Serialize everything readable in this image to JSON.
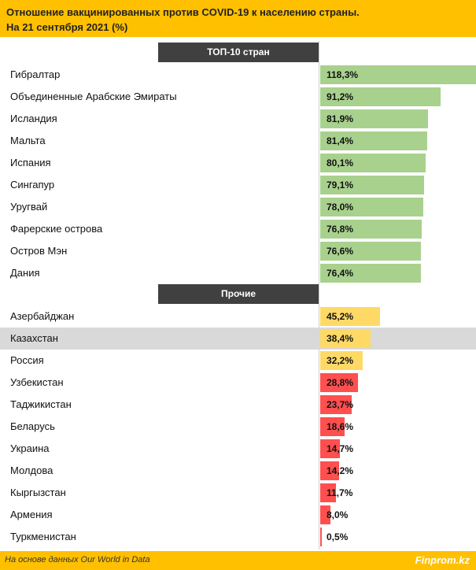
{
  "header": {
    "title_line1": "Отношение вакцинированных против COVID-19 к населению страны.",
    "title_line2": "На 21 сентября 2021 (%)"
  },
  "footer": {
    "source": "На основе данных Our World in Data",
    "brand": "Finprom.kz"
  },
  "colors": {
    "header_bg": "#ffc000",
    "section_bg": "#404040",
    "top10_bar": "#a9d18e",
    "mid_bar": "#ffd966",
    "low_bar": "#ff4f4f",
    "highlight_row": "#d9d9d9"
  },
  "chart_data": {
    "type": "bar",
    "orientation": "horizontal",
    "title": "Отношение вакцинированных против COVID-19 к населению страны. На 21 сентября 2021 (%)",
    "value_unit": "%",
    "groups": [
      {
        "name": "ТОП-10 стран",
        "rows": [
          {
            "country": "Гибралтар",
            "value": 118.3,
            "label": "118,3%",
            "color": "#a9d18e"
          },
          {
            "country": "Объединенные Арабские Эмираты",
            "value": 91.2,
            "label": "91,2%",
            "color": "#a9d18e"
          },
          {
            "country": "Исландия",
            "value": 81.9,
            "label": "81,9%",
            "color": "#a9d18e"
          },
          {
            "country": "Мальта",
            "value": 81.4,
            "label": "81,4%",
            "color": "#a9d18e"
          },
          {
            "country": "Испания",
            "value": 80.1,
            "label": "80,1%",
            "color": "#a9d18e"
          },
          {
            "country": "Сингапур",
            "value": 79.1,
            "label": "79,1%",
            "color": "#a9d18e"
          },
          {
            "country": "Уругвай",
            "value": 78.0,
            "label": "78,0%",
            "color": "#a9d18e"
          },
          {
            "country": "Фарерские острова",
            "value": 76.8,
            "label": "76,8%",
            "color": "#a9d18e"
          },
          {
            "country": "Остров Мэн",
            "value": 76.6,
            "label": "76,6%",
            "color": "#a9d18e"
          },
          {
            "country": "Дания",
            "value": 76.4,
            "label": "76,4%",
            "color": "#a9d18e"
          }
        ]
      },
      {
        "name": "Прочие",
        "rows": [
          {
            "country": "Азербайджан",
            "value": 45.2,
            "label": "45,2%",
            "color": "#ffd966"
          },
          {
            "country": "Казахстан",
            "value": 38.4,
            "label": "38,4%",
            "color": "#ffd966",
            "highlight": true
          },
          {
            "country": "Россия",
            "value": 32.2,
            "label": "32,2%",
            "color": "#ffd966"
          },
          {
            "country": "Узбекистан",
            "value": 28.8,
            "label": "28,8%",
            "color": "#ff4f4f"
          },
          {
            "country": "Таджикистан",
            "value": 23.7,
            "label": "23,7%",
            "color": "#ff4f4f"
          },
          {
            "country": "Беларусь",
            "value": 18.6,
            "label": "18,6%",
            "color": "#ff4f4f"
          },
          {
            "country": "Украина",
            "value": 14.7,
            "label": "14,7%",
            "color": "#ff4f4f"
          },
          {
            "country": "Молдова",
            "value": 14.2,
            "label": "14,2%",
            "color": "#ff4f4f"
          },
          {
            "country": "Кыргызстан",
            "value": 11.7,
            "label": "11,7%",
            "color": "#ff4f4f"
          },
          {
            "country": "Армения",
            "value": 8.0,
            "label": "8,0%",
            "color": "#ff4f4f"
          },
          {
            "country": "Туркменистан",
            "value": 0.5,
            "label": "0,5%",
            "color": "#ff4f4f"
          }
        ]
      }
    ]
  }
}
